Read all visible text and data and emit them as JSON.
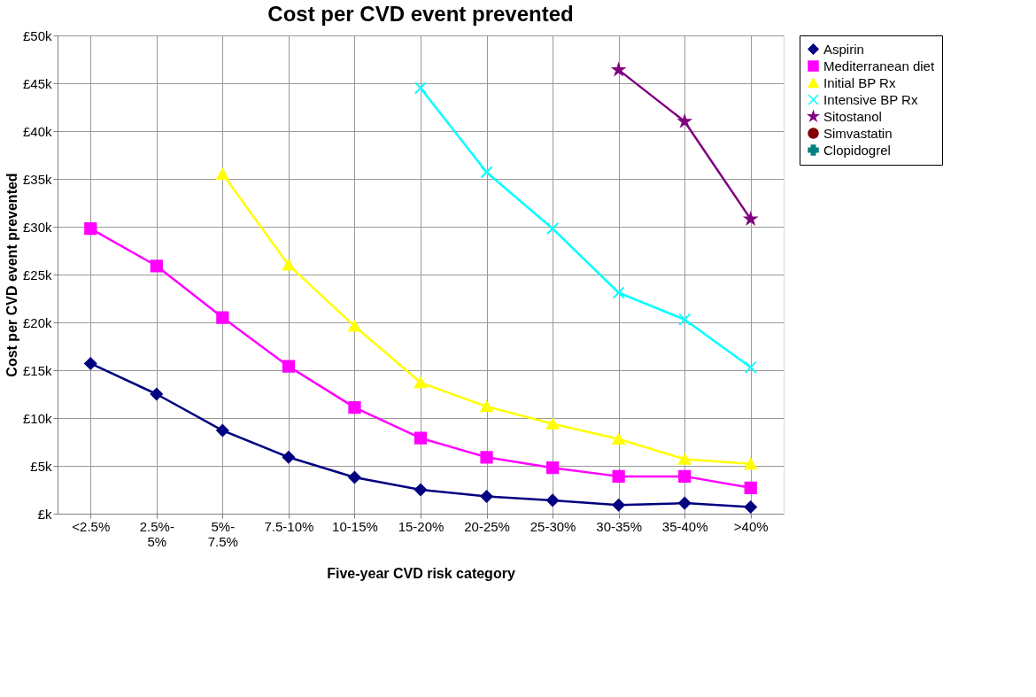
{
  "chart_data": {
    "type": "line",
    "title": "Cost per CVD event prevented",
    "xlabel": "Five-year CVD risk category",
    "ylabel": "Cost per CVD event prevented",
    "categories": [
      "<2.5%",
      "2.5%-5%",
      "5%-7.5%",
      "7.5-10%",
      "10-15%",
      "15-20%",
      "20-25%",
      "25-30%",
      "30-35%",
      "35-40%",
      ">40%"
    ],
    "series": [
      {
        "name": "Aspirin",
        "color": "#000080",
        "marker": "diamond",
        "values": [
          15700,
          12500,
          8700,
          5900,
          3800,
          2500,
          1800,
          1400,
          900,
          1100,
          700
        ]
      },
      {
        "name": "Mediterranean diet",
        "color": "#ff00ff",
        "marker": "square",
        "values": [
          29800,
          25900,
          20500,
          15400,
          11100,
          7900,
          5900,
          4800,
          3900,
          3900,
          2700
        ]
      },
      {
        "name": "Initial BP Rx",
        "color": "#ffff00",
        "marker": "triangle",
        "values": [
          null,
          null,
          35500,
          26000,
          19600,
          13700,
          11200,
          9400,
          7800,
          5700,
          5200
        ]
      },
      {
        "name": "Intensive BP Rx",
        "color": "#00ffff",
        "marker": "cross",
        "values": [
          null,
          null,
          null,
          null,
          null,
          44500,
          35700,
          29800,
          23100,
          20300,
          15300
        ]
      },
      {
        "name": "Sitostanol",
        "color": "#800080",
        "marker": "star",
        "values": [
          null,
          null,
          null,
          null,
          null,
          null,
          null,
          null,
          46400,
          41000,
          30800
        ]
      },
      {
        "name": "Simvastatin",
        "color": "#800000",
        "marker": "circle",
        "values": [
          null,
          null,
          null,
          null,
          null,
          null,
          null,
          null,
          null,
          null,
          null
        ]
      },
      {
        "name": "Clopidogrel",
        "color": "#008080",
        "marker": "plus",
        "values": [
          null,
          null,
          null,
          null,
          null,
          null,
          null,
          null,
          null,
          null,
          null
        ]
      }
    ],
    "ylim": [
      0,
      50000
    ],
    "yticks": [
      {
        "value": 0,
        "label": "£k"
      },
      {
        "value": 5000,
        "label": "£5k"
      },
      {
        "value": 10000,
        "label": "£10k"
      },
      {
        "value": 15000,
        "label": "£15k"
      },
      {
        "value": 20000,
        "label": "£20k"
      },
      {
        "value": 25000,
        "label": "£25k"
      },
      {
        "value": 30000,
        "label": "£30k"
      },
      {
        "value": 35000,
        "label": "£35k"
      },
      {
        "value": 40000,
        "label": "£40k"
      },
      {
        "value": 45000,
        "label": "£45k"
      },
      {
        "value": 50000,
        "label": "£50k"
      }
    ],
    "grid": true,
    "legend": "right",
    "line_style": "solid"
  }
}
